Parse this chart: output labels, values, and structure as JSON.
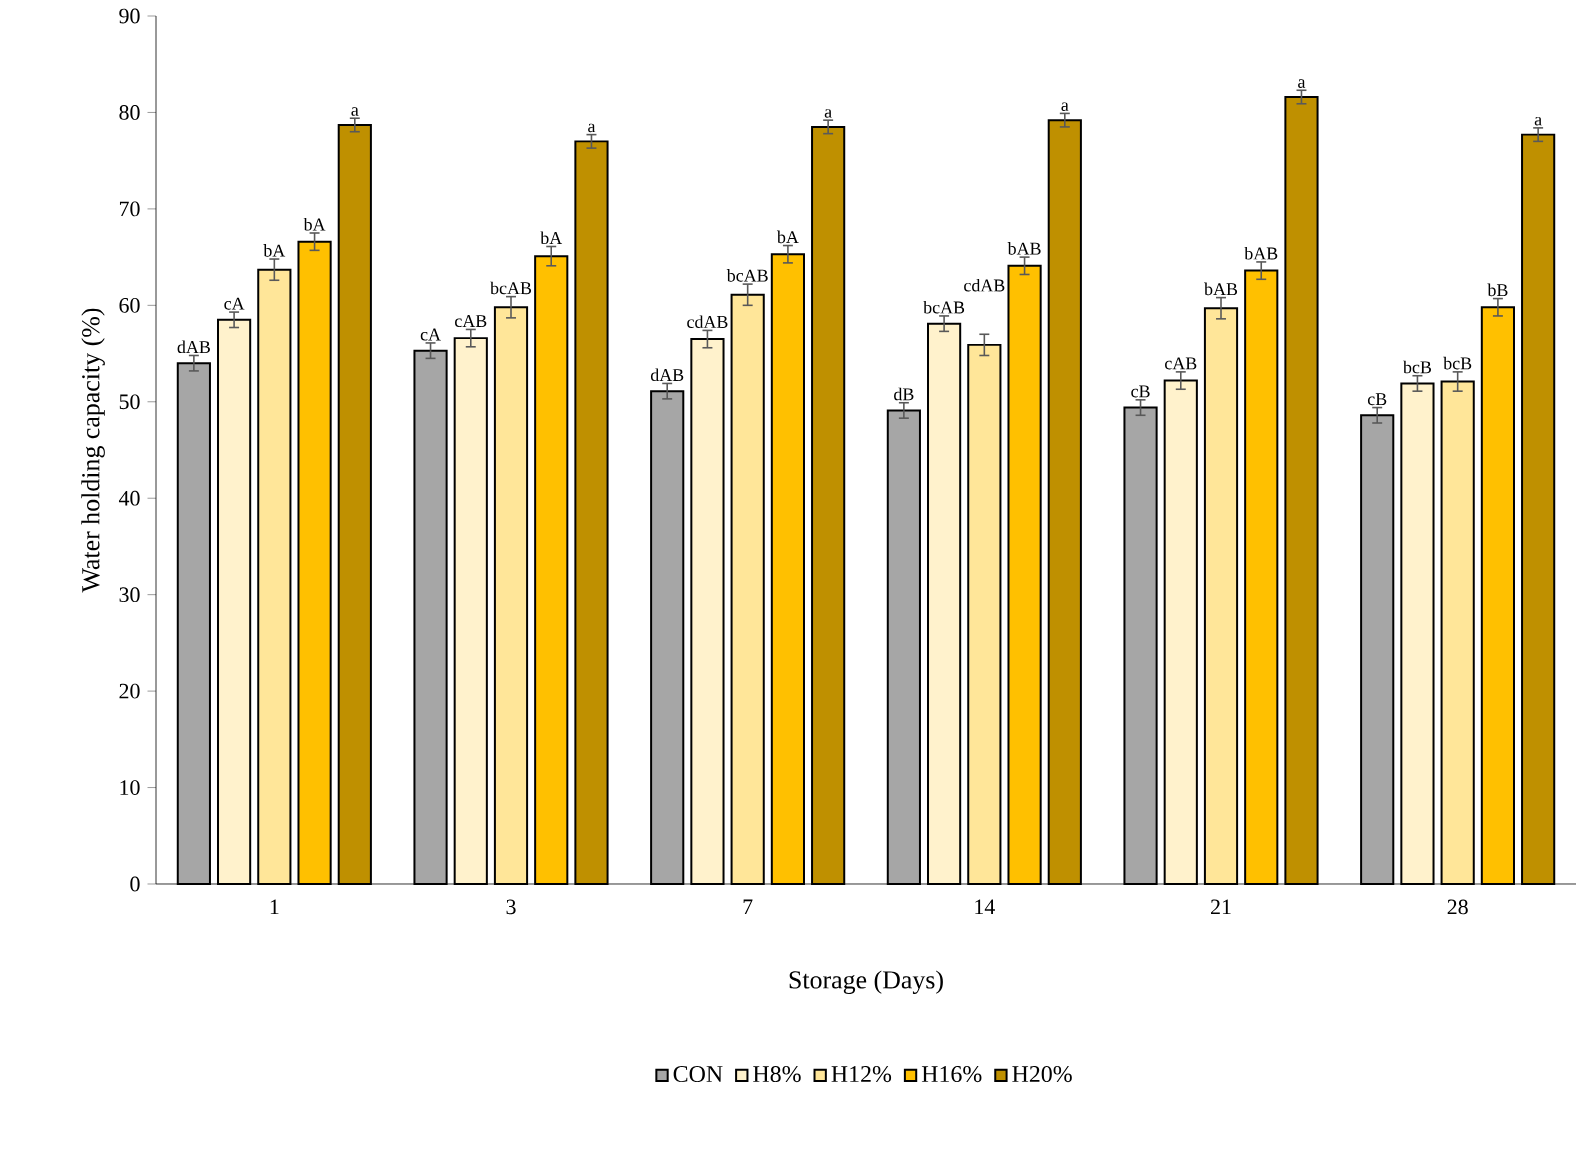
{
  "chart_data": {
    "type": "bar",
    "xlabel": "Storage (Days)",
    "ylabel": "Water holding capacity (%)",
    "categories": [
      "1",
      "3",
      "7",
      "14",
      "21",
      "28"
    ],
    "series": [
      {
        "name": "CON",
        "color": "#a6a6a6",
        "values": [
          54.0,
          55.3,
          51.1,
          49.1,
          49.4,
          48.6
        ],
        "errors": [
          0.8,
          0.8,
          0.8,
          0.8,
          0.8,
          0.8
        ],
        "value_labels": [
          "dAB",
          "cA",
          "dAB",
          "dB",
          "cB",
          "cB"
        ]
      },
      {
        "name": "H8%",
        "color": "#fff2cc",
        "values": [
          58.5,
          56.6,
          56.5,
          58.1,
          52.2,
          51.9
        ],
        "errors": [
          0.8,
          0.9,
          0.9,
          0.8,
          0.9,
          0.8
        ],
        "value_labels": [
          "cA",
          "cAB",
          "cdAB",
          "bcAB",
          "cAB",
          "bcB"
        ]
      },
      {
        "name": "H12%",
        "color": "#ffe699",
        "values": [
          63.7,
          59.8,
          61.1,
          55.9,
          59.7,
          52.1
        ],
        "errors": [
          1.1,
          1.1,
          1.1,
          1.1,
          1.1,
          1.0
        ],
        "value_labels": [
          "bA",
          "bcAB",
          "bcAB",
          "cdAB",
          "bAB",
          "bcB"
        ]
      },
      {
        "name": "H16%",
        "color": "#ffc000",
        "values": [
          66.6,
          65.1,
          65.3,
          64.1,
          63.6,
          59.8
        ],
        "errors": [
          0.9,
          1.0,
          0.9,
          0.9,
          0.9,
          0.9
        ],
        "value_labels": [
          "bA",
          "bA",
          "bA",
          "bAB",
          "bAB",
          "bB"
        ]
      },
      {
        "name": "H20%",
        "color": "#bf9000",
        "values": [
          78.7,
          77.0,
          78.5,
          79.2,
          81.6,
          77.7
        ],
        "errors": [
          0.7,
          0.7,
          0.7,
          0.7,
          0.7,
          0.7
        ],
        "value_labels": [
          "a",
          "a",
          "a",
          "a",
          "a",
          "a"
        ]
      }
    ],
    "ylim": [
      0,
      90
    ],
    "yticks": [
      0,
      10,
      20,
      30,
      40,
      50,
      60,
      70,
      80,
      90
    ],
    "grid": false,
    "legend": "bottom"
  }
}
